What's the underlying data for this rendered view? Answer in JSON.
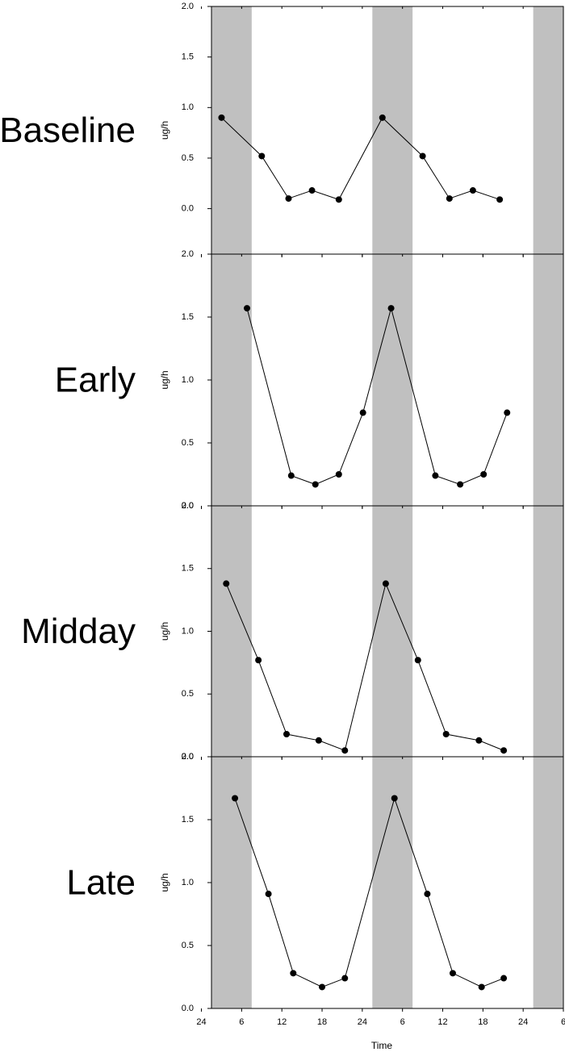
{
  "chart_data": [
    {
      "type": "line",
      "annotation": "Baseline",
      "ylabel": "ug/h",
      "color": "#000000",
      "shade_color": "#c0c0c0",
      "shaded": [
        [
          1.5,
          7.5
        ],
        [
          25.5,
          31.5
        ],
        [
          49.5,
          54
        ]
      ],
      "x": [
        3,
        9,
        13,
        16.5,
        20.5,
        27,
        33,
        37,
        40.5,
        44.5
      ],
      "values": [
        0.9,
        0.52,
        0.1,
        0.18,
        0.09,
        0.9,
        0.52,
        0.1,
        0.18,
        0.09
      ],
      "xlim": [
        1.5,
        54
      ],
      "ylim": [
        -0.45,
        2.0
      ],
      "yticks": [
        {
          "value": 0,
          "label": "0.0"
        },
        0.5,
        {
          "value": 1,
          "label": "1.0"
        },
        1.5,
        {
          "value": 2,
          "label": "2.0"
        }
      ]
    },
    {
      "type": "line",
      "annotation": "Early",
      "ylabel": "ug/h",
      "color": "#000000",
      "shade_color": "#c0c0c0",
      "shaded": [
        [
          1.5,
          7.5
        ],
        [
          25.5,
          31.5
        ],
        [
          49.5,
          54
        ]
      ],
      "x": [
        6.8,
        13.4,
        17,
        20.5,
        24.1,
        28.3,
        34.9,
        38.6,
        42.1,
        45.6
      ],
      "values": [
        1.57,
        0.24,
        0.17,
        0.25,
        0.74,
        1.57,
        0.24,
        0.17,
        0.25,
        0.74
      ],
      "xlim": [
        1.5,
        54
      ],
      "ylim": [
        0,
        2.0
      ],
      "yticks": [
        {
          "value": 0,
          "label": "0.0"
        },
        0.5,
        {
          "value": 1,
          "label": "1.0"
        },
        1.5,
        {
          "value": 2,
          "label": "2.0"
        }
      ]
    },
    {
      "type": "line",
      "annotation": "Midday",
      "ylabel": "ug/h",
      "color": "#000000",
      "shade_color": "#c0c0c0",
      "shaded": [
        [
          1.5,
          7.5
        ],
        [
          25.5,
          31.5
        ],
        [
          49.5,
          54
        ]
      ],
      "x": [
        3.7,
        8.5,
        12.7,
        17.5,
        21.4,
        27.5,
        32.3,
        36.5,
        41.4,
        45.1
      ],
      "values": [
        1.38,
        0.77,
        0.18,
        0.13,
        0.05,
        1.38,
        0.77,
        0.18,
        0.13,
        0.05
      ],
      "xlim": [
        1.5,
        54
      ],
      "ylim": [
        0,
        2.0
      ],
      "yticks": [
        {
          "value": 0,
          "label": "0.0"
        },
        0.5,
        {
          "value": 1,
          "label": "1.0"
        },
        1.5,
        {
          "value": 2,
          "label": "2.0"
        }
      ]
    },
    {
      "type": "line",
      "annotation": "Late",
      "ylabel": "ug/h",
      "xlabel": "Time",
      "color": "#000000",
      "shade_color": "#c0c0c0",
      "shaded": [
        [
          1.5,
          7.5
        ],
        [
          25.5,
          31.5
        ],
        [
          49.5,
          54
        ]
      ],
      "x": [
        5,
        10,
        13.7,
        18,
        21.4,
        28.8,
        33.7,
        37.5,
        41.8,
        45.1
      ],
      "values": [
        1.67,
        0.91,
        0.28,
        0.17,
        0.24,
        1.67,
        0.91,
        0.28,
        0.17,
        0.24
      ],
      "xlim": [
        1.5,
        54
      ],
      "ylim": [
        0,
        2.0
      ],
      "yticks": [
        {
          "value": 0,
          "label": "0.0"
        },
        0.5,
        {
          "value": 1,
          "label": "1.0"
        },
        1.5,
        {
          "value": 2,
          "label": "2.0"
        }
      ],
      "xticks": [
        {
          "value": 0,
          "label": "24"
        },
        6,
        12,
        18,
        24,
        {
          "value": 30,
          "label": "6"
        },
        {
          "value": 36,
          "label": "12"
        },
        {
          "value": 42,
          "label": "18"
        },
        {
          "value": 48,
          "label": "24"
        },
        {
          "value": 54,
          "label": "6"
        }
      ]
    }
  ]
}
